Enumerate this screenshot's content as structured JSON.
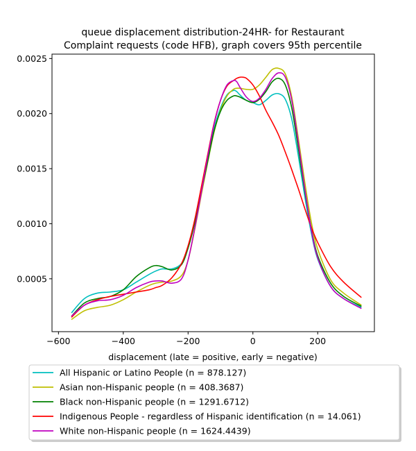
{
  "chart_data": {
    "type": "line",
    "title_lines": [
      "queue displacement distribution-24HR-  for Restaurant",
      "Complaint  requests (code HFB), graph covers 95th percentile"
    ],
    "xlabel": "displacement (late = positive, early = negative)",
    "ylabel": "",
    "xlim": [
      -620,
      375
    ],
    "ylim": [
      2e-05,
      0.00254
    ],
    "x_ticks": [
      -600,
      -400,
      -200,
      0,
      200
    ],
    "x_tick_labels": [
      "−600",
      "−400",
      "−200",
      "0",
      "200"
    ],
    "y_ticks": [
      0.0005,
      0.001,
      0.0015,
      0.002,
      0.0025
    ],
    "y_tick_labels": [
      "0.0005",
      "0.0010",
      "0.0015",
      "0.0020",
      "0.0025"
    ],
    "grid": false,
    "legend_position": "below plot",
    "series": [
      {
        "name": "All Hispanic or Latino People (n = 878.127)",
        "color": "#00bfbf",
        "x": [
          -560,
          -520,
          -480,
          -440,
          -400,
          -360,
          -320,
          -300,
          -280,
          -250,
          -220,
          -200,
          -180,
          -160,
          -140,
          -120,
          -100,
          -80,
          -60,
          -50,
          -40,
          -20,
          0,
          20,
          40,
          60,
          80,
          100,
          120,
          140,
          160,
          180,
          200,
          240,
          280,
          335
        ],
        "y": [
          0.00019,
          0.00032,
          0.00037,
          0.00038,
          0.0004,
          0.00047,
          0.00054,
          0.00057,
          0.00059,
          0.00059,
          0.00064,
          0.00078,
          0.00101,
          0.00128,
          0.00157,
          0.00186,
          0.00205,
          0.00217,
          0.00221,
          0.0022,
          0.00217,
          0.00212,
          0.0021,
          0.00208,
          0.00212,
          0.00217,
          0.00218,
          0.00213,
          0.00195,
          0.00162,
          0.00125,
          0.00092,
          0.00068,
          0.00043,
          0.00032,
          0.00024
        ]
      },
      {
        "name": "Asian non-Hispanic people (n = 408.3687)",
        "color": "#bfbf00",
        "x": [
          -560,
          -520,
          -480,
          -440,
          -400,
          -360,
          -320,
          -300,
          -280,
          -250,
          -220,
          -200,
          -180,
          -160,
          -140,
          -120,
          -100,
          -80,
          -60,
          -50,
          -40,
          -20,
          0,
          20,
          40,
          60,
          80,
          100,
          120,
          140,
          160,
          180,
          200,
          240,
          280,
          335
        ],
        "y": [
          0.00013,
          0.00021,
          0.00024,
          0.00026,
          0.00031,
          0.00038,
          0.00044,
          0.00046,
          0.00047,
          0.00048,
          0.00053,
          0.00067,
          0.00094,
          0.00125,
          0.00155,
          0.00183,
          0.00203,
          0.00216,
          0.00222,
          0.00223,
          0.00223,
          0.00222,
          0.00222,
          0.00226,
          0.00233,
          0.0024,
          0.00241,
          0.00236,
          0.00215,
          0.00178,
          0.00138,
          0.00102,
          0.00077,
          0.00049,
          0.00037,
          0.00026
        ]
      },
      {
        "name": "Black non-Hispanic people (n = 1291.6712)",
        "color": "#008000",
        "x": [
          -560,
          -520,
          -480,
          -440,
          -400,
          -360,
          -320,
          -300,
          -280,
          -250,
          -220,
          -200,
          -180,
          -160,
          -140,
          -120,
          -100,
          -80,
          -60,
          -50,
          -40,
          -20,
          0,
          20,
          40,
          60,
          80,
          100,
          120,
          140,
          160,
          180,
          200,
          240,
          280,
          335
        ],
        "y": [
          0.00016,
          0.00028,
          0.00032,
          0.00034,
          0.0004,
          0.00052,
          0.0006,
          0.00062,
          0.00061,
          0.00058,
          0.00063,
          0.00078,
          0.001,
          0.00128,
          0.00156,
          0.00184,
          0.00202,
          0.00212,
          0.00216,
          0.00216,
          0.00215,
          0.00212,
          0.0021,
          0.00213,
          0.0022,
          0.00229,
          0.00232,
          0.00226,
          0.00205,
          0.00169,
          0.0013,
          0.00096,
          0.00071,
          0.00046,
          0.00034,
          0.00025
        ]
      },
      {
        "name": "Indigenous People - regardless of Hispanic identification (n = 14.061)",
        "color": "#ff0000",
        "x": [
          -560,
          -520,
          -480,
          -440,
          -400,
          -360,
          -320,
          -300,
          -280,
          -250,
          -220,
          -200,
          -180,
          -160,
          -140,
          -120,
          -100,
          -80,
          -60,
          -50,
          -40,
          -30,
          -20,
          0,
          20,
          40,
          60,
          80,
          100,
          120,
          140,
          160,
          180,
          200,
          240,
          280,
          335
        ],
        "y": [
          0.00015,
          0.00026,
          0.00031,
          0.00034,
          0.00036,
          0.00038,
          0.0004,
          0.00042,
          0.00044,
          0.00051,
          0.00064,
          0.0008,
          0.00103,
          0.00132,
          0.00162,
          0.00191,
          0.00212,
          0.00225,
          0.0023,
          0.00232,
          0.00233,
          0.00233,
          0.00232,
          0.00226,
          0.00216,
          0.00203,
          0.00192,
          0.0018,
          0.00165,
          0.00149,
          0.00132,
          0.00114,
          0.00097,
          0.00083,
          0.00061,
          0.00047,
          0.00033
        ]
      },
      {
        "name": "White non-Hispanic people (n = 1624.4439)",
        "color": "#bf00bf",
        "x": [
          -560,
          -520,
          -480,
          -440,
          -400,
          -360,
          -320,
          -300,
          -280,
          -250,
          -220,
          -200,
          -180,
          -160,
          -140,
          -120,
          -100,
          -80,
          -60,
          -50,
          -40,
          -20,
          0,
          20,
          40,
          60,
          80,
          100,
          120,
          140,
          160,
          180,
          200,
          240,
          280,
          335
        ],
        "y": [
          0.00016,
          0.00026,
          0.0003,
          0.00031,
          0.00035,
          0.00042,
          0.00047,
          0.00048,
          0.00048,
          0.00046,
          0.0005,
          0.00067,
          0.00095,
          0.00127,
          0.0016,
          0.0019,
          0.00212,
          0.00226,
          0.0023,
          0.00229,
          0.00224,
          0.00215,
          0.00211,
          0.00214,
          0.00222,
          0.00232,
          0.00237,
          0.00233,
          0.00212,
          0.00174,
          0.00132,
          0.00095,
          0.00069,
          0.00043,
          0.00032,
          0.00023
        ]
      }
    ]
  }
}
